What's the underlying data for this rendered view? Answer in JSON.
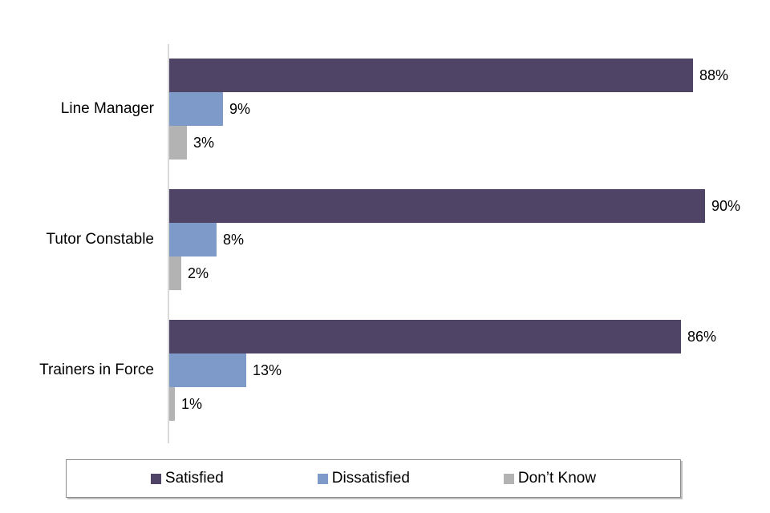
{
  "page": {
    "background": "#ffffff",
    "text_color": "#000000"
  },
  "chart_data": {
    "type": "bar",
    "orientation": "horizontal",
    "title": "",
    "categories": [
      "Line Manager",
      "Tutor Constable",
      "Trainers in Force"
    ],
    "series": [
      {
        "name": "Satisfied",
        "color": "#4F4366",
        "values": [
          88,
          90,
          86
        ]
      },
      {
        "name": "Dissatisfied",
        "color": "#7D9AC8",
        "values": [
          9,
          8,
          13
        ]
      },
      {
        "name": "Don’t Know",
        "color": "#B3B3B3",
        "values": [
          3,
          2,
          1
        ]
      }
    ],
    "value_suffix": "%",
    "data_labels_shown": [
      "88%",
      "9%",
      "3%",
      "90%",
      "8%",
      "2%",
      "86%",
      "13%",
      "1%"
    ],
    "xlim": [
      0,
      100
    ],
    "grid": false,
    "axis_line_color": "#D9D9D9",
    "legend_position": "bottom"
  },
  "legend": {
    "border_color": "#8C8C8C",
    "items": [
      {
        "label": "Satisfied",
        "color": "#4F4366"
      },
      {
        "label": "Dissatisfied",
        "color": "#7D9AC8"
      },
      {
        "label": "Don’t Know",
        "color": "#B3B3B3"
      }
    ]
  }
}
